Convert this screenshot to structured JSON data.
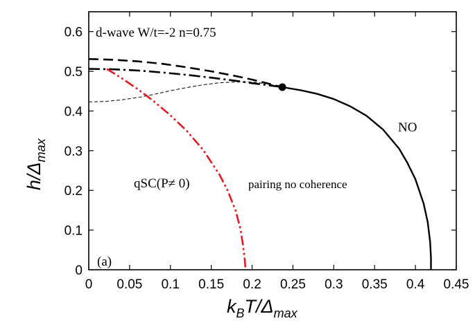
{
  "chart_data": {
    "type": "line",
    "title": "",
    "xlabel": {
      "main": "k",
      "sub": "B",
      "mid": "T/Δ",
      "sub2": "max"
    },
    "ylabel": {
      "main": "h/Δ",
      "sub": "max"
    },
    "xlim": [
      0,
      0.45
    ],
    "ylim": [
      0,
      0.65
    ],
    "xticks": [
      "0",
      "0.05",
      "0.1",
      "0.15",
      "0.2",
      "0.25",
      "0.3",
      "0.35",
      "0.4",
      "0.45"
    ],
    "yticks": [
      "0",
      "0.1",
      "0.2",
      "0.3",
      "0.4",
      "0.5",
      "0.6"
    ],
    "grid": false,
    "annotations": {
      "header": "d-wave W/t=-2 n=0.75",
      "panel": "(a)",
      "region_normal": "NO",
      "region_qsc": "qSC(P≠ 0)",
      "region_pairing": "pairing no coherence"
    },
    "series": [
      {
        "style": "solid",
        "color": "#000000",
        "x": [
          0.237,
          0.26,
          0.28,
          0.3,
          0.32,
          0.34,
          0.36,
          0.38,
          0.39,
          0.4,
          0.41,
          0.415,
          0.418,
          0.419,
          0.419
        ],
        "y": [
          0.46,
          0.452,
          0.443,
          0.43,
          0.412,
          0.388,
          0.354,
          0.305,
          0.27,
          0.228,
          0.167,
          0.12,
          0.07,
          0.03,
          0.0
        ]
      },
      {
        "style": "dashed",
        "color": "#000000",
        "x": [
          0.0,
          0.03,
          0.06,
          0.09,
          0.12,
          0.15,
          0.18,
          0.2,
          0.22,
          0.237
        ],
        "y": [
          0.531,
          0.529,
          0.525,
          0.519,
          0.51,
          0.5,
          0.488,
          0.479,
          0.469,
          0.46
        ]
      },
      {
        "style": "dash-dot",
        "color": "#000000",
        "x": [
          0.0,
          0.03,
          0.06,
          0.09,
          0.12,
          0.15,
          0.18,
          0.2,
          0.22,
          0.237
        ],
        "y": [
          0.506,
          0.505,
          0.502,
          0.497,
          0.491,
          0.484,
          0.476,
          0.47,
          0.465,
          0.46
        ]
      },
      {
        "style": "thin-dashed",
        "color": "#000000",
        "x": [
          0.0,
          0.02,
          0.04,
          0.06,
          0.08,
          0.1,
          0.12,
          0.14,
          0.16,
          0.18,
          0.2,
          0.22,
          0.237
        ],
        "y": [
          0.423,
          0.424,
          0.428,
          0.434,
          0.442,
          0.451,
          0.459,
          0.466,
          0.471,
          0.473,
          0.473,
          0.468,
          0.46
        ]
      },
      {
        "style": "dash-dot-dot",
        "color": "#e8191e",
        "x": [
          0.022,
          0.04,
          0.06,
          0.08,
          0.1,
          0.12,
          0.14,
          0.16,
          0.17,
          0.18,
          0.186,
          0.189,
          0.191,
          0.192
        ],
        "y": [
          0.506,
          0.483,
          0.455,
          0.424,
          0.389,
          0.35,
          0.302,
          0.24,
          0.2,
          0.148,
          0.1,
          0.06,
          0.025,
          0.0
        ]
      }
    ],
    "tricritical_point": {
      "x": 0.237,
      "y": 0.46
    }
  }
}
